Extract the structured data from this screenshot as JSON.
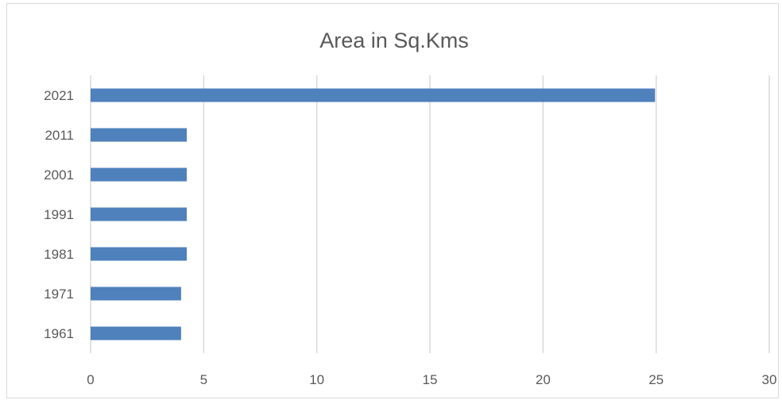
{
  "chart_data": {
    "type": "bar",
    "orientation": "horizontal",
    "title": "Area in Sq.Kms",
    "categories": [
      "2021",
      "2011",
      "2001",
      "1991",
      "1981",
      "1971",
      "1961"
    ],
    "values": [
      24.95,
      4.25,
      4.25,
      4.25,
      4.25,
      4.0,
      4.0
    ],
    "xlim": [
      0,
      30
    ],
    "xticks": [
      0,
      5,
      10,
      15,
      20,
      25,
      30
    ],
    "grid": true,
    "legend": "none",
    "bar_color": "#4f81bd"
  }
}
